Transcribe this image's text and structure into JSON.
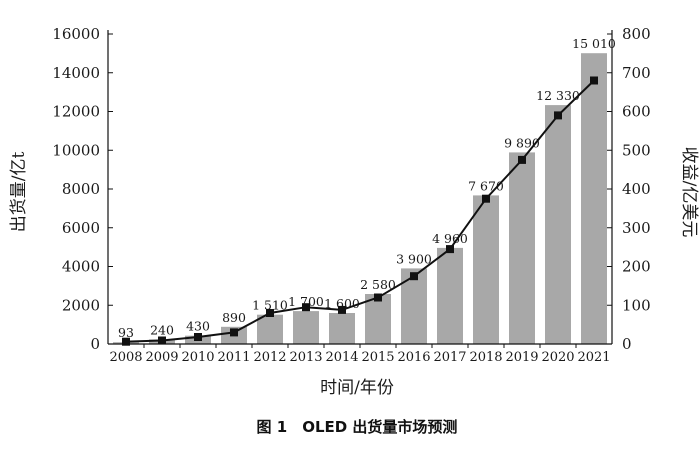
{
  "chart_data": {
    "type": "bar",
    "caption": "图 1　OLED 出货量市场预测",
    "xlabel": "时间/年份",
    "ylabel_left": "出货量/亿t",
    "ylabel_right": "收益/亿美元",
    "categories": [
      "2008",
      "2009",
      "2010",
      "2011",
      "2012",
      "2013",
      "2014",
      "2015",
      "2016",
      "2017",
      "2018",
      "2019",
      "2020",
      "2021"
    ],
    "ylim_left": [
      0,
      16000
    ],
    "ylim_right": [
      0,
      800
    ],
    "yticks_left": [
      0,
      2000,
      4000,
      6000,
      8000,
      10000,
      12000,
      14000,
      16000
    ],
    "yticks_right": [
      0,
      100,
      200,
      300,
      400,
      500,
      600,
      700,
      800
    ],
    "grid": false,
    "legend": "none",
    "series": [
      {
        "type": "bar",
        "axis": "left",
        "color": "#a8a8a8",
        "values": [
          93,
          240,
          430,
          890,
          1510,
          1700,
          1600,
          2580,
          3900,
          4960,
          7670,
          9890,
          12330,
          15010
        ],
        "labels": [
          "93",
          "240",
          "430",
          "890",
          "1 510",
          "1 700",
          "1 600",
          "2 580",
          "3 900",
          "4 960",
          "7 670",
          "9 890",
          "12 330",
          "15 010"
        ]
      },
      {
        "type": "line",
        "axis": "right",
        "color": "#111111",
        "values": [
          6,
          9,
          18,
          30,
          80,
          95,
          88,
          120,
          175,
          245,
          375,
          475,
          590,
          680
        ]
      }
    ]
  }
}
